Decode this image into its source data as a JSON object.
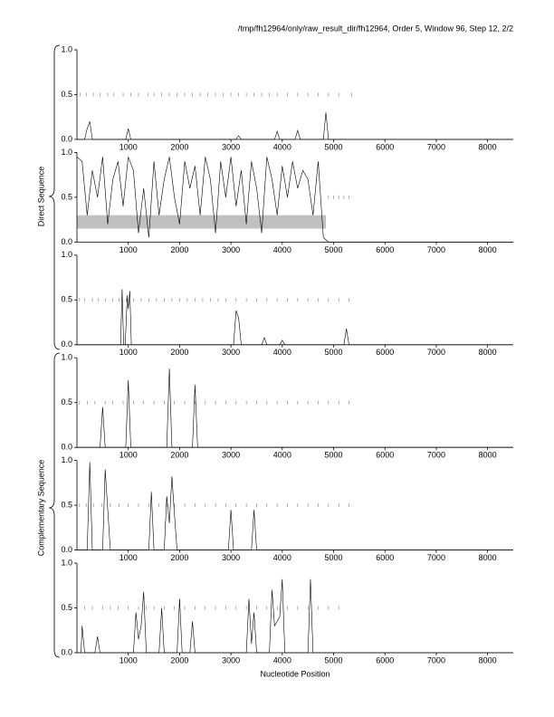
{
  "title": "/tmp/fh12964/only/raw_result_dir/fh12964, Order 5, Window 96, Step 12, 2/2",
  "xlabel": "Nucleotide Position",
  "group_labels": [
    "Direct Sequence",
    "Complementary Sequence"
  ],
  "chart_data": [
    {
      "type": "line",
      "color": "#000000",
      "x": [
        0,
        150,
        200,
        250,
        300,
        900,
        950,
        1000,
        1050,
        1500,
        3100,
        3150,
        3200,
        3850,
        3900,
        3950,
        4250,
        4300,
        4350,
        4800,
        4850,
        4900,
        8500
      ],
      "values": [
        0,
        0,
        0.12,
        0.2,
        0,
        0,
        0,
        0.12,
        0,
        0,
        0,
        0.04,
        0,
        0,
        0.09,
        0,
        0,
        0.1,
        0,
        0,
        0.3,
        0,
        0
      ],
      "orf_marks": [
        60,
        180,
        320,
        450,
        600,
        720,
        900,
        1050,
        1200,
        1380,
        1500,
        1650,
        1800,
        1950,
        2100,
        2250,
        2400,
        2550,
        2700,
        2850,
        3000,
        3150,
        3300,
        3450,
        3600,
        3750,
        3900,
        4100,
        4300,
        4500,
        4700,
        4900,
        5100,
        5350
      ],
      "xlim": [
        0,
        8500
      ],
      "ylim": [
        0,
        1
      ],
      "xticks": [
        1000,
        2000,
        3000,
        4000,
        5000,
        6000,
        7000,
        8000
      ],
      "yticks": [
        {
          "value": 0,
          "label": "0.0"
        },
        0.5,
        {
          "value": 1,
          "label": "1.0"
        }
      ]
    },
    {
      "type": "line",
      "color": "#000000",
      "x": [
        0,
        100,
        200,
        300,
        400,
        500,
        600,
        700,
        800,
        900,
        1000,
        1100,
        1200,
        1300,
        1400,
        1500,
        1600,
        1700,
        1800,
        1900,
        2000,
        2100,
        2200,
        2300,
        2400,
        2500,
        2600,
        2700,
        2800,
        2900,
        3000,
        3100,
        3200,
        3300,
        3400,
        3500,
        3600,
        3700,
        3800,
        3900,
        4000,
        4100,
        4200,
        4300,
        4400,
        4500,
        4600,
        4700,
        4800,
        4900,
        5000,
        8500
      ],
      "values": [
        0.95,
        0.9,
        0.3,
        0.8,
        0.5,
        0.95,
        0.2,
        0.7,
        0.9,
        0.4,
        0.95,
        0.8,
        0.1,
        0.6,
        0.05,
        0.9,
        0.3,
        0.7,
        0.95,
        0.5,
        0.2,
        0.9,
        0.6,
        0.85,
        0.3,
        0.95,
        0.7,
        0.1,
        0.9,
        0.5,
        0.95,
        0.4,
        0.8,
        0.2,
        0.9,
        0.6,
        0.1,
        0.95,
        0.7,
        0.3,
        0.85,
        0.5,
        0.9,
        0.6,
        0.8,
        0.7,
        0.3,
        0.9,
        0.05,
        0,
        0,
        0
      ],
      "orf_marks": [
        4900,
        5000,
        5100,
        5200,
        5300
      ],
      "band": {
        "x": [
          0,
          4850
        ],
        "y": [
          0.15,
          0.3
        ],
        "color": "#c0c0c0"
      },
      "xlim": [
        0,
        8500
      ],
      "ylim": [
        0,
        1
      ],
      "xticks": [
        1000,
        2000,
        3000,
        4000,
        5000,
        6000,
        7000,
        8000
      ],
      "yticks": [
        {
          "value": 0,
          "label": "0.0"
        },
        0.5,
        {
          "value": 1,
          "label": "1.0"
        }
      ]
    },
    {
      "type": "line",
      "color": "#000000",
      "x": [
        0,
        850,
        880,
        910,
        940,
        980,
        1000,
        1030,
        1060,
        3050,
        3100,
        3150,
        3200,
        3600,
        3650,
        3700,
        3950,
        4000,
        4050,
        5200,
        5250,
        5300,
        8500
      ],
      "values": [
        0,
        0,
        0.62,
        0,
        0,
        0.55,
        0.4,
        0.6,
        0,
        0,
        0.38,
        0.3,
        0,
        0,
        0.08,
        0,
        0,
        0.05,
        0,
        0,
        0.18,
        0,
        0
      ],
      "orf_marks": [
        50,
        150,
        300,
        420,
        560,
        700,
        820,
        960,
        1100,
        1250,
        1400,
        1550,
        1700,
        1850,
        2000,
        2150,
        2300,
        2450,
        2600,
        2750,
        2900,
        3100,
        3300,
        3500,
        3700,
        3900,
        4100,
        4300,
        4500,
        4700,
        4900,
        5100,
        5300
      ],
      "xlim": [
        0,
        8500
      ],
      "ylim": [
        0,
        1
      ],
      "xticks": [
        1000,
        2000,
        3000,
        4000,
        5000,
        6000,
        7000,
        8000
      ],
      "yticks": [
        {
          "value": 0,
          "label": "0.0"
        },
        0.5,
        {
          "value": 1,
          "label": "1.0"
        }
      ]
    },
    {
      "type": "line",
      "color": "#000000",
      "x": [
        0,
        450,
        500,
        550,
        950,
        1000,
        1050,
        1750,
        1800,
        1850,
        2250,
        2300,
        2350,
        8500
      ],
      "values": [
        0,
        0,
        0.45,
        0,
        0,
        0.75,
        0,
        0,
        0.88,
        0,
        0,
        0.7,
        0,
        0
      ],
      "orf_marks": [
        50,
        200,
        350,
        550,
        700,
        900,
        1100,
        1300,
        1500,
        1700,
        1900,
        2100,
        2300,
        2500,
        2700,
        2900,
        3100,
        3300,
        3500,
        3700,
        3900,
        4100,
        4300,
        4500,
        4700,
        4900,
        5100,
        5300
      ],
      "xlim": [
        0,
        8500
      ],
      "ylim": [
        0,
        1
      ],
      "xticks": [
        1000,
        2000,
        3000,
        4000,
        5000,
        6000,
        7000,
        8000
      ],
      "yticks": [
        {
          "value": 0,
          "label": "0.0"
        },
        0.5,
        {
          "value": 1,
          "label": "1.0"
        }
      ]
    },
    {
      "type": "line",
      "color": "#000000",
      "x": [
        0,
        200,
        250,
        300,
        500,
        550,
        650,
        1400,
        1450,
        1500,
        1700,
        1750,
        1800,
        1850,
        1900,
        1950,
        2950,
        3000,
        3050,
        3400,
        3450,
        3500,
        8500
      ],
      "values": [
        0,
        0,
        0.98,
        0,
        0,
        0.9,
        0,
        0,
        0.65,
        0,
        0,
        0.6,
        0.3,
        0.82,
        0.4,
        0,
        0,
        0.45,
        0,
        0,
        0.45,
        0,
        0
      ],
      "orf_marks": [
        50,
        180,
        320,
        480,
        650,
        820,
        1000,
        1200,
        1400,
        1600,
        1750,
        1900,
        2100,
        2300,
        2500,
        2700,
        2900,
        3100,
        3300,
        3500,
        3700,
        3900,
        4100,
        4300,
        4500,
        4700,
        4900,
        5100,
        5300
      ],
      "xlim": [
        0,
        8500
      ],
      "ylim": [
        0,
        1
      ],
      "xticks": [
        1000,
        2000,
        3000,
        4000,
        5000,
        6000,
        7000,
        8000
      ],
      "yticks": [
        {
          "value": 0,
          "label": "0.0"
        },
        0.5,
        {
          "value": 1,
          "label": "1.0"
        }
      ]
    },
    {
      "type": "line",
      "color": "#000000",
      "x": [
        0,
        80,
        100,
        150,
        350,
        400,
        450,
        1100,
        1150,
        1200,
        1250,
        1300,
        1350,
        1600,
        1650,
        1700,
        1950,
        2000,
        2050,
        2200,
        2250,
        2300,
        3300,
        3350,
        3400,
        3450,
        3500,
        3750,
        3800,
        3850,
        3950,
        4000,
        4050,
        4500,
        4550,
        4600,
        8500
      ],
      "values": [
        0,
        0,
        0.3,
        0,
        0,
        0.18,
        0,
        0,
        0.45,
        0.15,
        0.3,
        0.68,
        0,
        0,
        0.5,
        0,
        0,
        0.6,
        0,
        0,
        0.35,
        0,
        0,
        0.6,
        0.1,
        0.45,
        0,
        0,
        0.7,
        0.3,
        0.4,
        0.82,
        0,
        0,
        0.82,
        0,
        0
      ],
      "orf_marks": [
        150,
        300,
        500,
        650,
        800,
        1000,
        1200,
        1350,
        1500,
        1700,
        1900,
        2100,
        2300,
        2500,
        2700,
        2900,
        3100,
        3300,
        3500,
        3700,
        3900,
        4100,
        4300,
        4500,
        4700,
        4900,
        5100
      ],
      "xlim": [
        0,
        8500
      ],
      "ylim": [
        0,
        1
      ],
      "xticks": [
        1000,
        2000,
        3000,
        4000,
        5000,
        6000,
        7000,
        8000
      ],
      "yticks": [
        {
          "value": 0,
          "label": "0.0"
        },
        0.5,
        {
          "value": 1,
          "label": "1.0"
        }
      ]
    }
  ]
}
